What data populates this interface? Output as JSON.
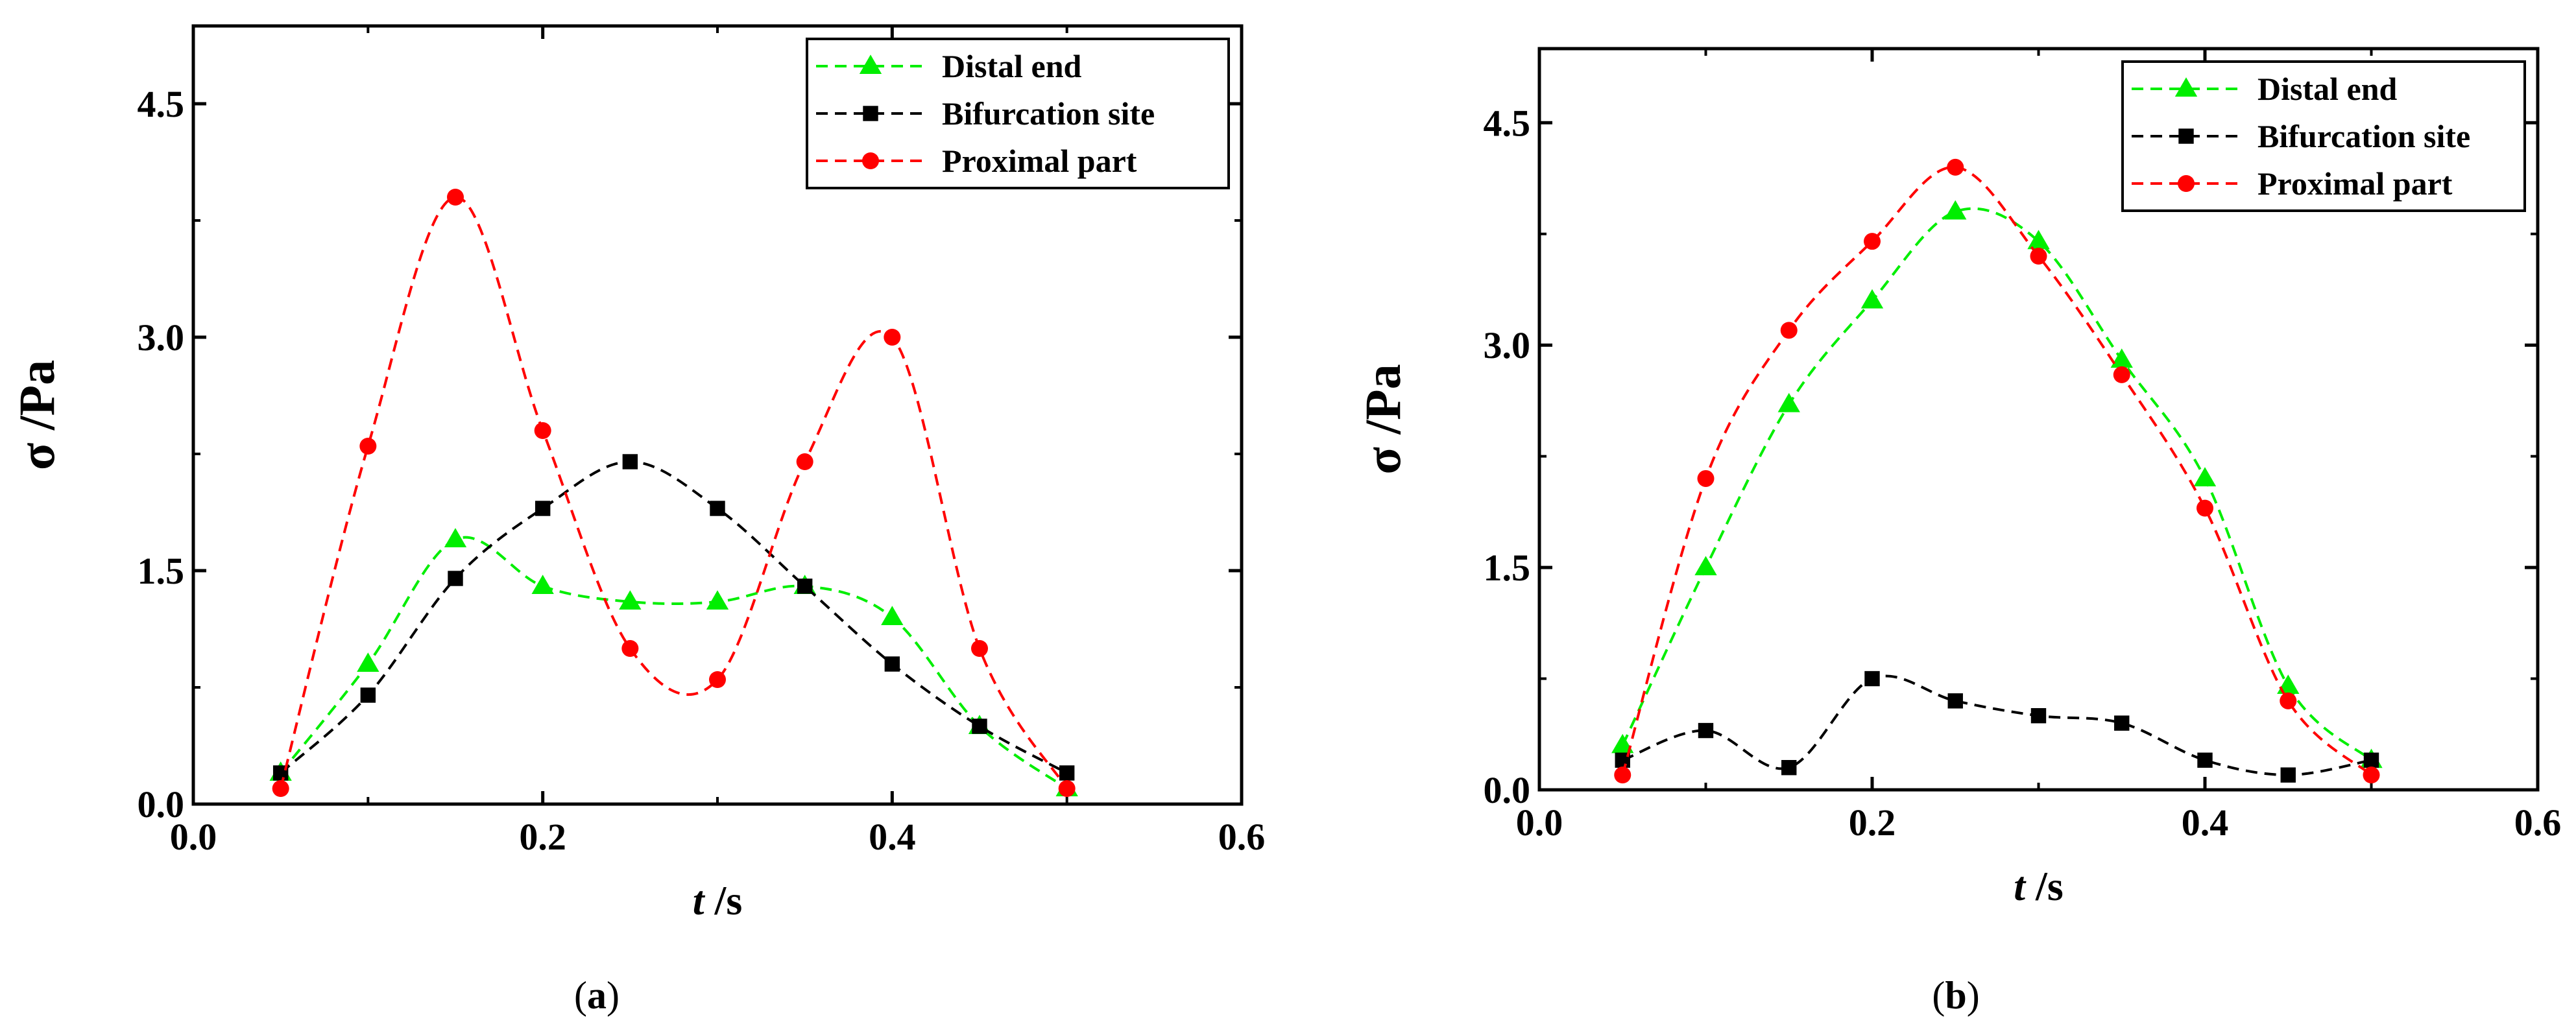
{
  "chart_data": [
    {
      "type": "scatter",
      "panel_label": "(a)",
      "xlabel_italic": "t",
      "xlabel_unit": " /s",
      "ylabel": "σ /Pa",
      "xlim": [
        0.0,
        0.6
      ],
      "ylim": [
        0.0,
        5.0
      ],
      "xticks": [
        0.0,
        0.2,
        0.4,
        0.6
      ],
      "xtick_labels": [
        "0.0",
        "0.2",
        "0.4",
        "0.6"
      ],
      "yticks": [
        0.0,
        1.5,
        3.0,
        4.5
      ],
      "ytick_labels": [
        "0.0",
        "1.5",
        "3.0",
        "4.5"
      ],
      "legend_position": "top-right",
      "x": [
        0.05,
        0.1,
        0.15,
        0.2,
        0.25,
        0.3,
        0.35,
        0.4,
        0.45,
        0.5
      ],
      "series": [
        {
          "name": "Distal end",
          "marker": "triangle",
          "color": "#00ee00",
          "values": [
            0.2,
            0.9,
            1.7,
            1.4,
            1.3,
            1.3,
            1.4,
            1.2,
            0.5,
            0.1
          ]
        },
        {
          "name": "Bifurcation site",
          "marker": "square",
          "color": "#000000",
          "values": [
            0.2,
            0.7,
            1.45,
            1.9,
            2.2,
            1.9,
            1.4,
            0.9,
            0.5,
            0.2
          ]
        },
        {
          "name": "Proximal part",
          "marker": "circle",
          "color": "#ff0000",
          "values": [
            0.1,
            2.3,
            3.9,
            2.4,
            1.0,
            0.8,
            2.2,
            3.0,
            1.0,
            0.1
          ]
        }
      ]
    },
    {
      "type": "scatter",
      "panel_label": "(b)",
      "xlabel_italic": "t",
      "xlabel_unit": " /s",
      "ylabel": "σ /Pa",
      "xlim": [
        0.0,
        0.6
      ],
      "ylim": [
        0.0,
        5.0
      ],
      "xticks": [
        0.0,
        0.2,
        0.4,
        0.6
      ],
      "xtick_labels": [
        "0.0",
        "0.2",
        "0.4",
        "0.6"
      ],
      "yticks": [
        0.0,
        1.5,
        3.0,
        4.5
      ],
      "ytick_labels": [
        "0.0",
        "1.5",
        "3.0",
        "4.5"
      ],
      "legend_position": "top-right",
      "x": [
        0.05,
        0.1,
        0.15,
        0.2,
        0.25,
        0.3,
        0.35,
        0.4,
        0.45,
        0.5
      ],
      "series": [
        {
          "name": "Distal end",
          "marker": "triangle",
          "color": "#00ee00",
          "values": [
            0.3,
            1.5,
            2.6,
            3.3,
            3.9,
            3.7,
            2.9,
            2.1,
            0.7,
            0.2
          ]
        },
        {
          "name": "Bifurcation site",
          "marker": "square",
          "color": "#000000",
          "values": [
            0.2,
            0.4,
            0.15,
            0.75,
            0.6,
            0.5,
            0.45,
            0.2,
            0.1,
            0.2
          ]
        },
        {
          "name": "Proximal part",
          "marker": "circle",
          "color": "#ff0000",
          "values": [
            0.1,
            2.1,
            3.1,
            3.7,
            4.2,
            3.6,
            2.8,
            1.9,
            0.6,
            0.1
          ]
        }
      ]
    }
  ]
}
